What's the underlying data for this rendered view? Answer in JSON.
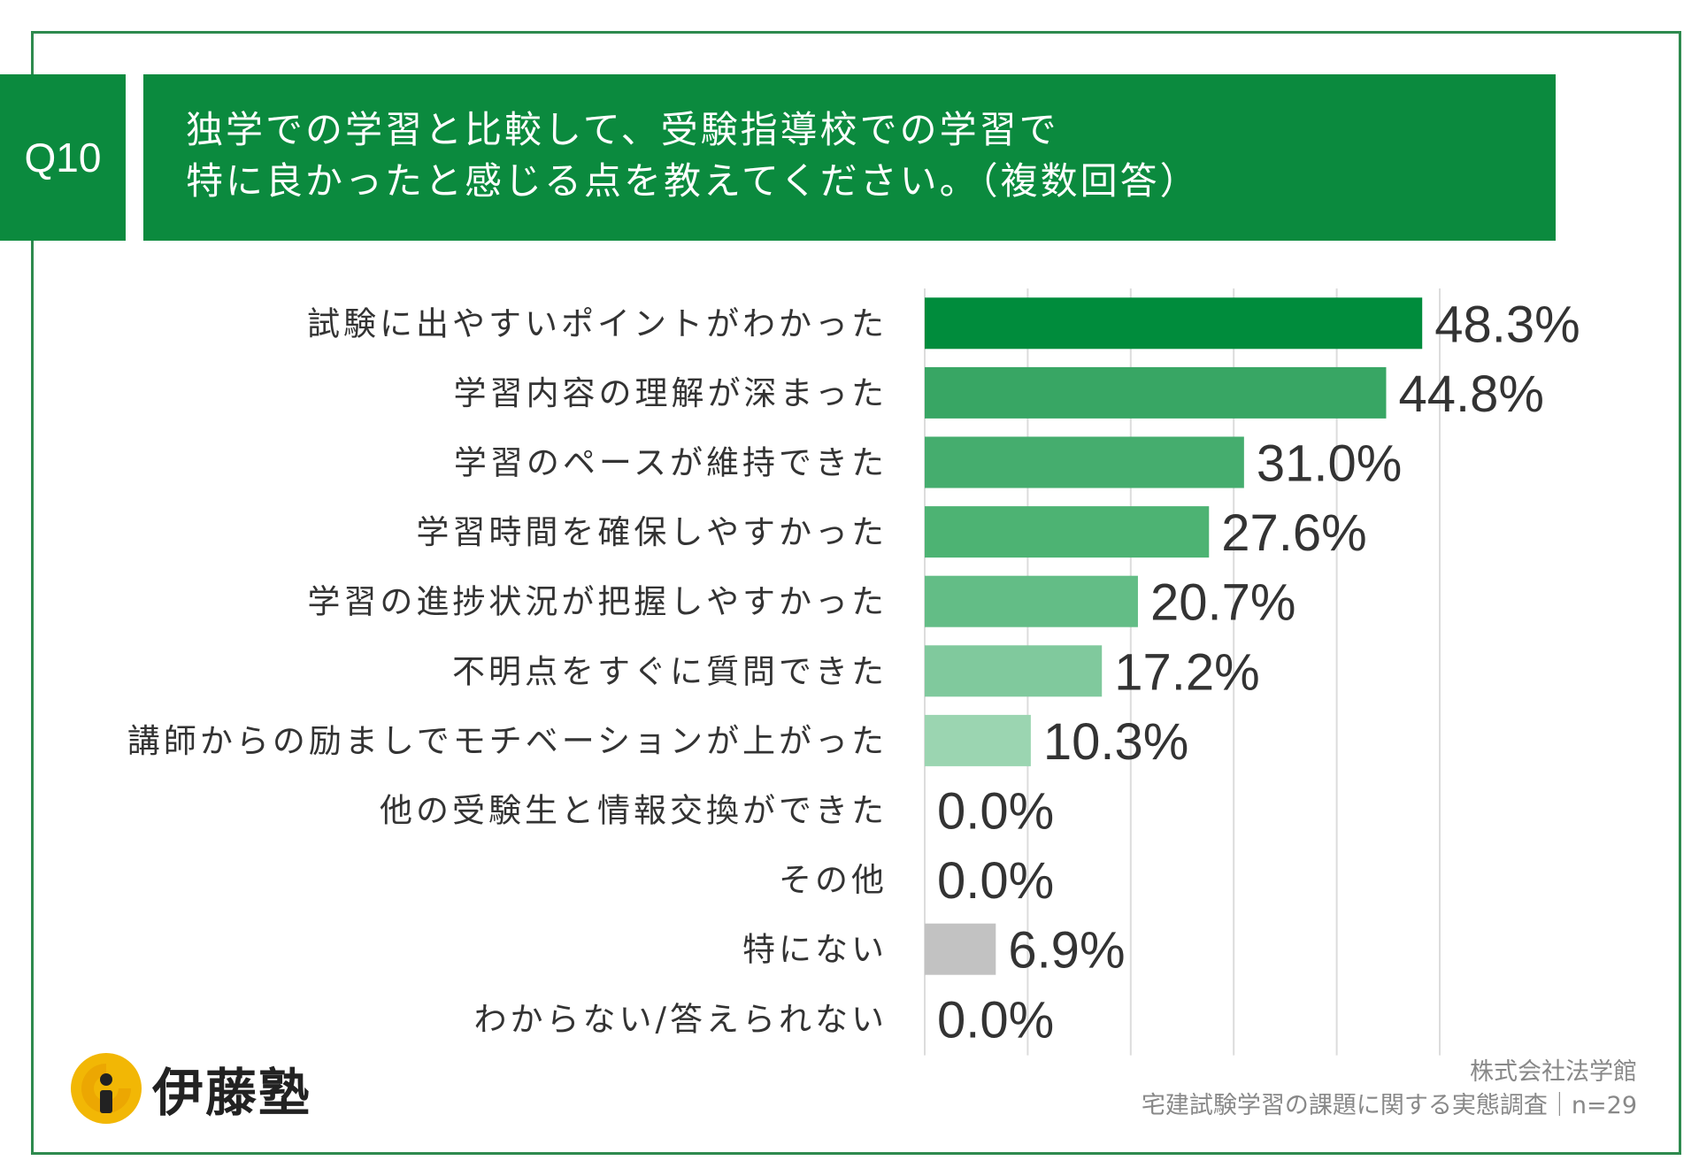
{
  "question": {
    "badge": "Q10",
    "line1": "独学での学習と比較して、受験指導校での学習で",
    "line2": "特に良かったと感じる点を教えてください。（複数回答）"
  },
  "chart_data": {
    "type": "bar",
    "orientation": "horizontal",
    "categories": [
      "試験に出やすいポイントがわかった",
      "学習内容の理解が深まった",
      "学習のペースが維持できた",
      "学習時間を確保しやすかった",
      "学習の進捗状況が把握しやすかった",
      "不明点をすぐに質問できた",
      "講師からの励ましでモチベーションが上がった",
      "他の受験生と情報交換ができた",
      "その他",
      "特にない",
      "わからない/答えられない"
    ],
    "values": [
      48.3,
      44.8,
      31.0,
      27.6,
      20.7,
      17.2,
      10.3,
      0.0,
      0.0,
      6.9,
      0.0
    ],
    "data_labels": [
      "48.3%",
      "44.8%",
      "31.0%",
      "27.6%",
      "20.7%",
      "17.2%",
      "10.3%",
      "0.0%",
      "0.0%",
      "6.9%",
      "0.0%"
    ],
    "bar_colors": [
      "#008c3c",
      "#38a664",
      "#45ad6e",
      "#4db373",
      "#63bd86",
      "#80c99d",
      "#9bd5b1",
      "#9bd5b1",
      "#9bd5b1",
      "#c2c2c2",
      "#9bd5b1"
    ],
    "xlim": [
      0,
      50
    ],
    "grid": true,
    "grid_step": 10
  },
  "logo": {
    "text": "伊藤塾"
  },
  "footer": {
    "company": "株式会社法学館",
    "survey": "宅建試験学習の課題に関する実態調査｜n=29"
  }
}
